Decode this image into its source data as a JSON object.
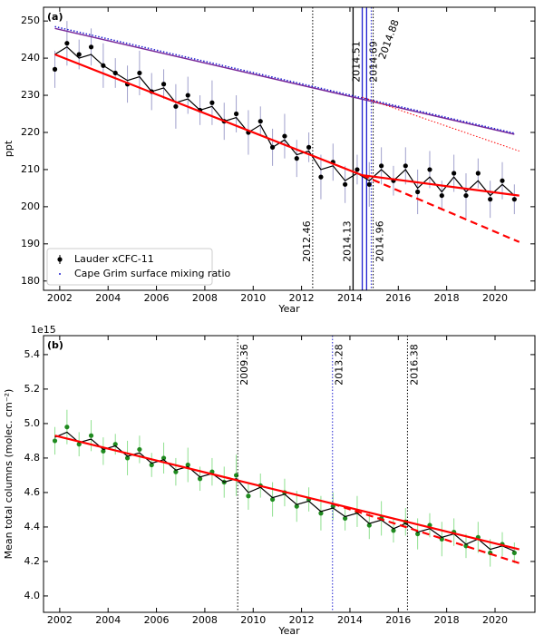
{
  "chart_data": [
    {
      "type": "scatter",
      "panel_label": "(a)",
      "x_label": "Year",
      "y_label": "ppt",
      "legend": "lower left",
      "xlim": [
        2001.33,
        2021.65
      ],
      "xticks": [
        2002,
        2004,
        2006,
        2008,
        2010,
        2012,
        2014,
        2016,
        2018,
        2020
      ],
      "ylim": [
        177.5,
        253.7
      ],
      "yticks": [
        180,
        190,
        200,
        210,
        220,
        230,
        240,
        250
      ],
      "x": [
        2001.8,
        2002.3,
        2002.8,
        2003.3,
        2003.8,
        2004.3,
        2004.8,
        2005.3,
        2005.8,
        2006.3,
        2006.8,
        2007.3,
        2007.8,
        2008.3,
        2008.8,
        2009.3,
        2009.8,
        2010.3,
        2010.8,
        2011.3,
        2011.8,
        2012.3,
        2012.8,
        2013.3,
        2013.8,
        2014.3,
        2014.8,
        2015.3,
        2015.8,
        2016.3,
        2016.8,
        2017.3,
        2017.8,
        2018.3,
        2018.8,
        2019.3,
        2019.8,
        2020.3,
        2020.8
      ],
      "series": [
        {
          "name": "Lauder xCFC-11",
          "color": "#000000",
          "error_color": "#a0a0cc",
          "values": [
            237,
            244,
            241,
            243,
            238,
            236,
            233,
            236,
            231,
            233,
            227,
            230,
            226,
            228,
            223,
            225,
            220,
            223,
            216,
            219,
            213,
            216,
            208,
            212,
            206,
            210,
            206,
            211,
            207,
            211,
            204,
            210,
            203,
            209,
            203,
            209,
            202,
            207,
            202
          ],
          "errors": [
            5,
            6,
            4,
            5,
            6,
            4,
            5,
            6,
            5,
            4,
            6,
            5,
            4,
            6,
            5,
            5,
            6,
            4,
            5,
            6,
            5,
            4,
            6,
            5,
            5,
            4,
            6,
            5,
            4,
            5,
            6,
            5,
            4,
            5,
            6,
            4,
            5,
            5,
            4
          ]
        }
      ],
      "lines": [
        {
          "color": "#000000",
          "style": "solid",
          "width": 1.2,
          "values": [
            241,
            243,
            240,
            241,
            238,
            236,
            234,
            235,
            231,
            232,
            228,
            229,
            226,
            227,
            223,
            224,
            220,
            222,
            216,
            218,
            214,
            215,
            210,
            211,
            207,
            209,
            207,
            210,
            207,
            210,
            205,
            208,
            204,
            208,
            204,
            207,
            203,
            206,
            203
          ]
        },
        {
          "color": "#7a2a9a",
          "style": "solid",
          "width": 1.5,
          "x": [
            2001.8,
            2020.8
          ],
          "values": [
            248,
            219.5
          ]
        },
        {
          "name": "Cape Grim surface mixing ratio",
          "color": "#1f1fd0",
          "style": "dotted",
          "width": 1.5,
          "x": [
            2001.8,
            2020.8
          ],
          "values": [
            248.5,
            219.8
          ]
        },
        {
          "color": "#ff0000",
          "style": "dotted",
          "width": 1,
          "x": [
            2014.5,
            2021
          ],
          "values": [
            229.5,
            215
          ]
        },
        {
          "color": "#ff0000",
          "style": "solid",
          "width": 2.2,
          "x": [
            2001.8,
            2014.5,
            2021
          ],
          "values": [
            241,
            208.5,
            203
          ]
        },
        {
          "color": "#ff0000",
          "style": "dashed",
          "width": 2.2,
          "x": [
            2014.5,
            2021
          ],
          "values": [
            208.5,
            190.5
          ]
        }
      ],
      "vlines": [
        {
          "value": 2012.46,
          "color": "#000000",
          "style": "dotted"
        },
        {
          "value": 2014.13,
          "color": "#000000",
          "style": "solid"
        },
        {
          "value": 2014.51,
          "color": "#1f1fd0",
          "style": "solid"
        },
        {
          "value": 2014.69,
          "color": "#1f1fd0",
          "style": "solid"
        },
        {
          "value": 2014.88,
          "color": "#1f1fd0",
          "style": "dotted"
        },
        {
          "value": 2014.96,
          "color": "#000000",
          "style": "dotted"
        }
      ]
    },
    {
      "type": "scatter",
      "panel_label": "(b)",
      "x_label": "Year",
      "y_label": "Mean total columns (molec. cm⁻²)",
      "offset_label": "1e15",
      "xlim": [
        2001.33,
        2021.65
      ],
      "xticks": [
        2002,
        2004,
        2006,
        2008,
        2010,
        2012,
        2014,
        2016,
        2018,
        2020
      ],
      "ylim": [
        3.905,
        5.51
      ],
      "yticks": [
        {
          "value": 4,
          "label": "4.0"
        },
        4.2,
        4.4,
        4.6,
        4.8,
        {
          "value": 5,
          "label": "5.0"
        },
        5.2,
        5.4
      ],
      "x": [
        2001.8,
        2002.3,
        2002.8,
        2003.3,
        2003.8,
        2004.3,
        2004.8,
        2005.3,
        2005.8,
        2006.3,
        2006.8,
        2007.3,
        2007.8,
        2008.3,
        2008.8,
        2009.3,
        2009.8,
        2010.3,
        2010.8,
        2011.3,
        2011.8,
        2012.3,
        2012.8,
        2013.3,
        2013.8,
        2014.3,
        2014.8,
        2015.3,
        2015.8,
        2016.3,
        2016.8,
        2017.3,
        2017.8,
        2018.3,
        2018.8,
        2019.3,
        2019.8,
        2020.3,
        2020.8
      ],
      "series": [
        {
          "color": "#1f8a1f",
          "error_color": "#8fe08f",
          "values": [
            4.9,
            4.98,
            4.88,
            4.93,
            4.84,
            4.88,
            4.8,
            4.85,
            4.76,
            4.8,
            4.72,
            4.76,
            4.68,
            4.72,
            4.66,
            4.7,
            4.58,
            4.64,
            4.56,
            4.6,
            4.52,
            4.56,
            4.48,
            4.52,
            4.45,
            4.49,
            4.41,
            4.45,
            4.38,
            4.43,
            4.36,
            4.41,
            4.33,
            4.37,
            4.29,
            4.34,
            4.25,
            4.3,
            4.25
          ],
          "errors": [
            0.08,
            0.1,
            0.07,
            0.09,
            0.08,
            0.06,
            0.1,
            0.08,
            0.07,
            0.09,
            0.08,
            0.1,
            0.07,
            0.08,
            0.09,
            0.12,
            0.08,
            0.07,
            0.1,
            0.08,
            0.09,
            0.07,
            0.1,
            0.08,
            0.07,
            0.09,
            0.08,
            0.1,
            0.07,
            0.08,
            0.09,
            0.07,
            0.1,
            0.08,
            0.07,
            0.09,
            0.08,
            0.07,
            0.06
          ]
        }
      ],
      "lines": [
        {
          "color": "#000000",
          "style": "solid",
          "width": 1.2,
          "values": [
            4.92,
            4.95,
            4.89,
            4.91,
            4.85,
            4.87,
            4.81,
            4.83,
            4.77,
            4.79,
            4.73,
            4.75,
            4.69,
            4.71,
            4.66,
            4.68,
            4.6,
            4.63,
            4.57,
            4.59,
            4.53,
            4.55,
            4.49,
            4.51,
            4.46,
            4.48,
            4.42,
            4.44,
            4.39,
            4.42,
            4.37,
            4.39,
            4.34,
            4.36,
            4.3,
            4.33,
            4.27,
            4.29,
            4.26
          ]
        },
        {
          "color": "#ff0000",
          "style": "solid",
          "width": 2.2,
          "x": [
            2001.8,
            2021
          ],
          "values": [
            4.93,
            4.27
          ]
        },
        {
          "color": "#ff0000",
          "style": "dashed",
          "width": 2.2,
          "x": [
            2013.28,
            2021
          ],
          "values": [
            4.535,
            4.19
          ]
        }
      ],
      "vlines": [
        {
          "value": 2009.36,
          "color": "#000000",
          "style": "dotted"
        },
        {
          "value": 2013.28,
          "color": "#1f1fd0",
          "style": "dotted"
        },
        {
          "value": 2016.38,
          "color": "#000000",
          "style": "dotted"
        }
      ]
    }
  ]
}
